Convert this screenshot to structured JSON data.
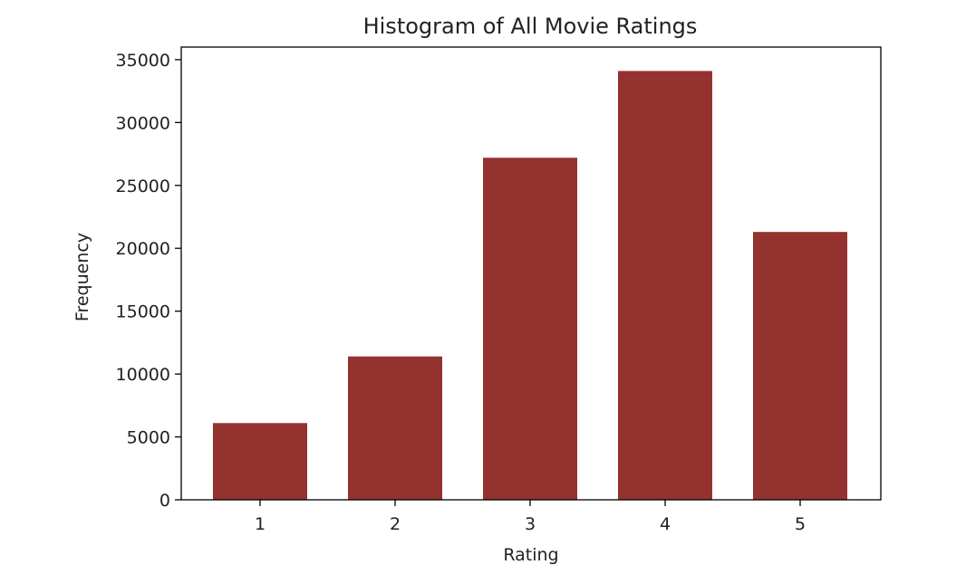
{
  "chart_data": {
    "type": "bar",
    "title": "Histogram of All Movie Ratings",
    "xlabel": "Rating",
    "ylabel": "Frequency",
    "categories": [
      "1",
      "2",
      "3",
      "4",
      "5"
    ],
    "values": [
      6100,
      11400,
      27200,
      34100,
      21300
    ],
    "ylim": [
      0,
      36000
    ],
    "yticks": [
      0,
      5000,
      10000,
      15000,
      20000,
      25000,
      30000,
      35000
    ],
    "ytick_labels": [
      "0",
      "5000",
      "10000",
      "15000",
      "20000",
      "25000",
      "30000",
      "35000"
    ],
    "bar_color": "#943230",
    "grid": false,
    "legend": "none"
  }
}
